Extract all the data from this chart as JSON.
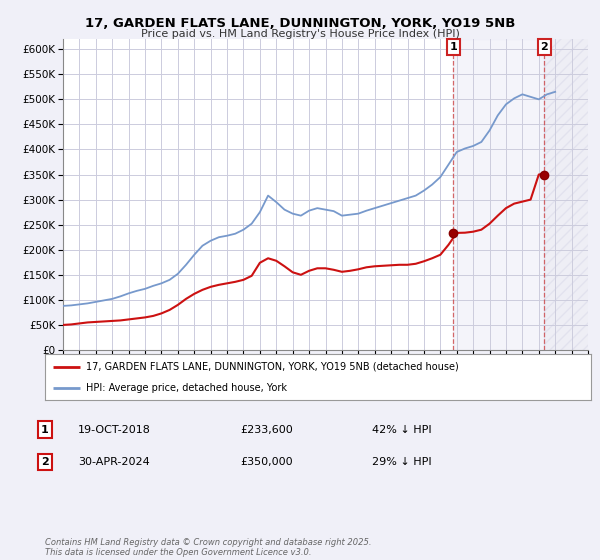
{
  "title1": "17, GARDEN FLATS LANE, DUNNINGTON, YORK, YO19 5NB",
  "title2": "Price paid vs. HM Land Registry's House Price Index (HPI)",
  "bg_color": "#f0f0f8",
  "plot_bg_color": "#ffffff",
  "grid_color": "#ccccdd",
  "hpi_color": "#7799cc",
  "price_color": "#cc1111",
  "marker1_date": 2018.8,
  "marker1_price": 233600,
  "marker1_label": "19-OCT-2018",
  "marker1_text": "£233,600",
  "marker1_pct": "42% ↓ HPI",
  "marker2_date": 2024.33,
  "marker2_price": 350000,
  "marker2_label": "30-APR-2024",
  "marker2_text": "£350,000",
  "marker2_pct": "29% ↓ HPI",
  "vline1_date": 2018.8,
  "vline2_date": 2024.33,
  "xmin": 1995,
  "xmax": 2027,
  "ymin": 0,
  "ymax": 620000,
  "legend_line1": "17, GARDEN FLATS LANE, DUNNINGTON, YORK, YO19 5NB (detached house)",
  "legend_line2": "HPI: Average price, detached house, York",
  "footer": "Contains HM Land Registry data © Crown copyright and database right 2025.\nThis data is licensed under the Open Government Licence v3.0."
}
